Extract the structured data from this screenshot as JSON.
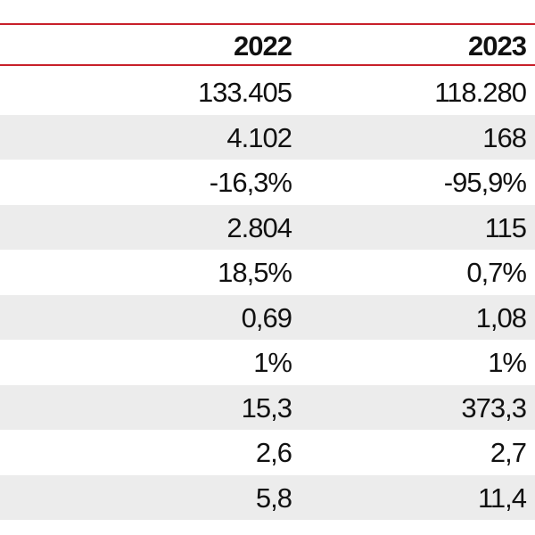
{
  "header": {
    "col1": "2022",
    "col2": "2023"
  },
  "rows": [
    {
      "v2022": "133.405",
      "v2023": "118.280"
    },
    {
      "v2022": "4.102",
      "v2023": "168"
    },
    {
      "v2022": "-16,3%",
      "v2023": "-95,9%"
    },
    {
      "v2022": "2.804",
      "v2023": "115"
    },
    {
      "v2022": "18,5%",
      "v2023": "0,7%"
    },
    {
      "v2022": "0,69",
      "v2023": "1,08"
    },
    {
      "v2022": "1%",
      "v2023": "1%"
    },
    {
      "v2022": "15,3",
      "v2023": "373,3"
    },
    {
      "v2022": "2,6",
      "v2023": "2,7"
    },
    {
      "v2022": "5,8",
      "v2023": "11,4"
    }
  ],
  "colors": {
    "rule": "#c8202a",
    "shade": "#ececec"
  }
}
